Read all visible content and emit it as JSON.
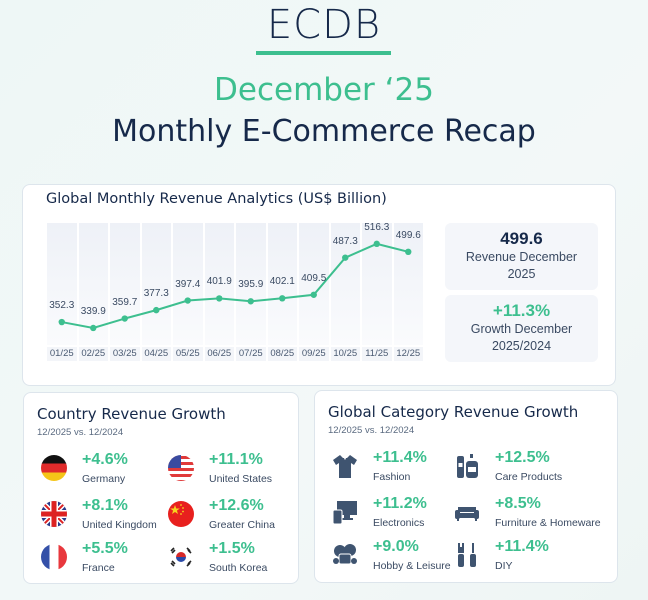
{
  "header": {
    "logo": "ECDB",
    "month": "December ‘25",
    "title": "Monthly E-Commerce Recap"
  },
  "colors": {
    "accent": "#3dbf8f",
    "navy": "#16294a",
    "icon": "#3f5470"
  },
  "revenue_card": {
    "title": "Global Monthly Revenue Analytics (US$ Billion)",
    "kpis": [
      {
        "value": "499.6",
        "label_line1": "Revenue December",
        "label_line2": "2025"
      },
      {
        "value": "+11.3%",
        "label_line1": "Growth December",
        "label_line2": "2025/2024"
      }
    ]
  },
  "chart_data": {
    "type": "line",
    "title": "Global Monthly Revenue Analytics (US$ Billion)",
    "categories": [
      "01/25",
      "02/25",
      "03/25",
      "04/25",
      "05/25",
      "06/25",
      "07/25",
      "08/25",
      "09/25",
      "10/25",
      "11/25",
      "12/25"
    ],
    "values": [
      352.3,
      339.9,
      359.7,
      377.3,
      397.4,
      401.9,
      395.9,
      402.1,
      409.5,
      487.3,
      516.3,
      499.6
    ],
    "labels": [
      "352.3",
      "339.9",
      "359.7",
      "377.3",
      "397.4",
      "401.9",
      "395.9",
      "402.1",
      "409.5",
      "487.3",
      "516.3",
      "499.6"
    ],
    "xlabel": "",
    "ylabel": "US$ Billion",
    "grid": false,
    "legend": "none",
    "color": "#3dbf8f"
  },
  "country_card": {
    "title": "Country Revenue Growth",
    "subtitle": "12/2025 vs. 12/2024",
    "items": [
      {
        "pct": "+4.6%",
        "name": "Germany",
        "icon": "flag-germany"
      },
      {
        "pct": "+11.1%",
        "name": "United States",
        "icon": "flag-usa"
      },
      {
        "pct": "+8.1%",
        "name": "United Kingdom",
        "icon": "flag-uk"
      },
      {
        "pct": "+12.6%",
        "name": "Greater China",
        "icon": "flag-china"
      },
      {
        "pct": "+5.5%",
        "name": "France",
        "icon": "flag-france"
      },
      {
        "pct": "+1.5%",
        "name": "South Korea",
        "icon": "flag-south-korea"
      }
    ]
  },
  "category_card": {
    "title": "Global Category Revenue Growth",
    "subtitle": "12/2025 vs. 12/2024",
    "items": [
      {
        "pct": "+11.4%",
        "name": "Fashion",
        "icon": "shirt-icon"
      },
      {
        "pct": "+12.5%",
        "name": "Care Products",
        "icon": "bottles-icon"
      },
      {
        "pct": "+11.2%",
        "name": "Electronics",
        "icon": "devices-icon"
      },
      {
        "pct": "+8.5%",
        "name": "Furniture & Homeware",
        "icon": "sofa-icon"
      },
      {
        "pct": "+9.0%",
        "name": "Hobby & Leisure",
        "icon": "toys-icon"
      },
      {
        "pct": "+11.4%",
        "name": "DIY",
        "icon": "tools-icon"
      }
    ]
  }
}
